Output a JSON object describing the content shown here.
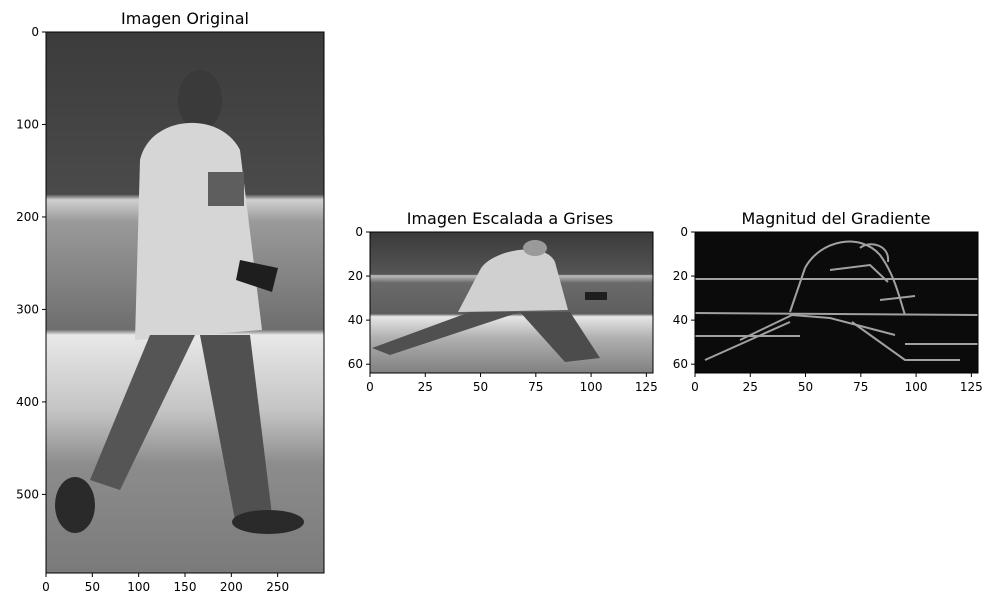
{
  "figure": {
    "panels": [
      {
        "id": "original",
        "title": "Imagen Original"
      },
      {
        "id": "grises",
        "title": "Imagen Escalada a Grises"
      },
      {
        "id": "gradiente",
        "title": "Magnitud del Gradiente"
      }
    ]
  },
  "chart_data": [
    {
      "type": "image",
      "title": "Imagen Original",
      "xlabel": "",
      "ylabel": "",
      "xlim": [
        0,
        300
      ],
      "ylim": [
        585,
        0
      ],
      "xticks": [
        0,
        50,
        100,
        150,
        200,
        250
      ],
      "yticks": [
        0,
        100,
        200,
        300,
        400,
        500
      ],
      "colormap": "gray",
      "content": "grayscale photo of a walking person"
    },
    {
      "type": "image",
      "title": "Imagen Escalada a Grises",
      "xlabel": "",
      "ylabel": "",
      "xlim": [
        0,
        128
      ],
      "ylim": [
        64,
        0
      ],
      "xticks": [
        0,
        25,
        50,
        75,
        100,
        125
      ],
      "yticks": [
        0,
        20,
        40,
        60
      ],
      "colormap": "gray",
      "content": "downscaled grayscale image of a walking person"
    },
    {
      "type": "image",
      "title": "Magnitud del Gradiente",
      "xlabel": "",
      "ylabel": "",
      "xlim": [
        0,
        128
      ],
      "ylim": [
        64,
        0
      ],
      "xticks": [
        0,
        25,
        50,
        75,
        100,
        125
      ],
      "yticks": [
        0,
        20,
        40,
        60
      ],
      "colormap": "gray",
      "content": "gradient magnitude edge map of a walking person"
    }
  ]
}
